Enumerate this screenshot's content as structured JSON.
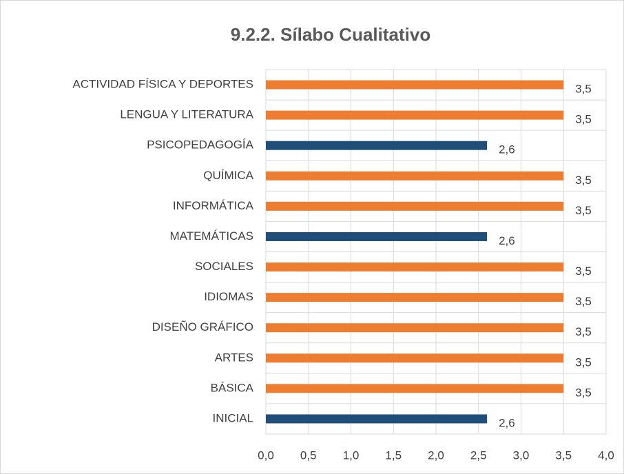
{
  "chart_data": {
    "type": "bar",
    "orientation": "horizontal",
    "title": "9.2.2. Sílabo Cualitativo",
    "categories": [
      "ACTIVIDAD FÍSICA Y DEPORTES",
      "LENGUA Y LITERATURA",
      "PSICOPEDAGOGÍA",
      "QUÍMICA",
      "INFORMÁTICA",
      "MATEMÁTICAS",
      "SOCIALES",
      "IDIOMAS",
      "DISEÑO GRÁFICO",
      "ARTES",
      "BÁSICA",
      "INICIAL"
    ],
    "values": [
      3.5,
      3.5,
      2.6,
      3.5,
      3.5,
      2.6,
      3.5,
      3.5,
      3.5,
      3.5,
      3.5,
      2.6
    ],
    "value_labels": [
      "3,5",
      "3,5",
      "2,6",
      "3,5",
      "3,5",
      "2,6",
      "3,5",
      "3,5",
      "3,5",
      "3,5",
      "3,5",
      "2,6"
    ],
    "colors": [
      "#ed7d31",
      "#ed7d31",
      "#1f4e79",
      "#ed7d31",
      "#ed7d31",
      "#1f4e79",
      "#ed7d31",
      "#ed7d31",
      "#ed7d31",
      "#ed7d31",
      "#ed7d31",
      "#1f4e79"
    ],
    "xlim": [
      0,
      4
    ],
    "xticks": [
      {
        "value": 0,
        "label": "0,0"
      },
      {
        "value": 0.5,
        "label": "0,5"
      },
      {
        "value": 1,
        "label": "1,0"
      },
      {
        "value": 1.5,
        "label": "1,5"
      },
      {
        "value": 2,
        "label": "2,0"
      },
      {
        "value": 2.5,
        "label": "2,5"
      },
      {
        "value": 3,
        "label": "3,0"
      },
      {
        "value": 3.5,
        "label": "3,5"
      },
      {
        "value": 4,
        "label": "4,0"
      }
    ],
    "grid": true
  }
}
